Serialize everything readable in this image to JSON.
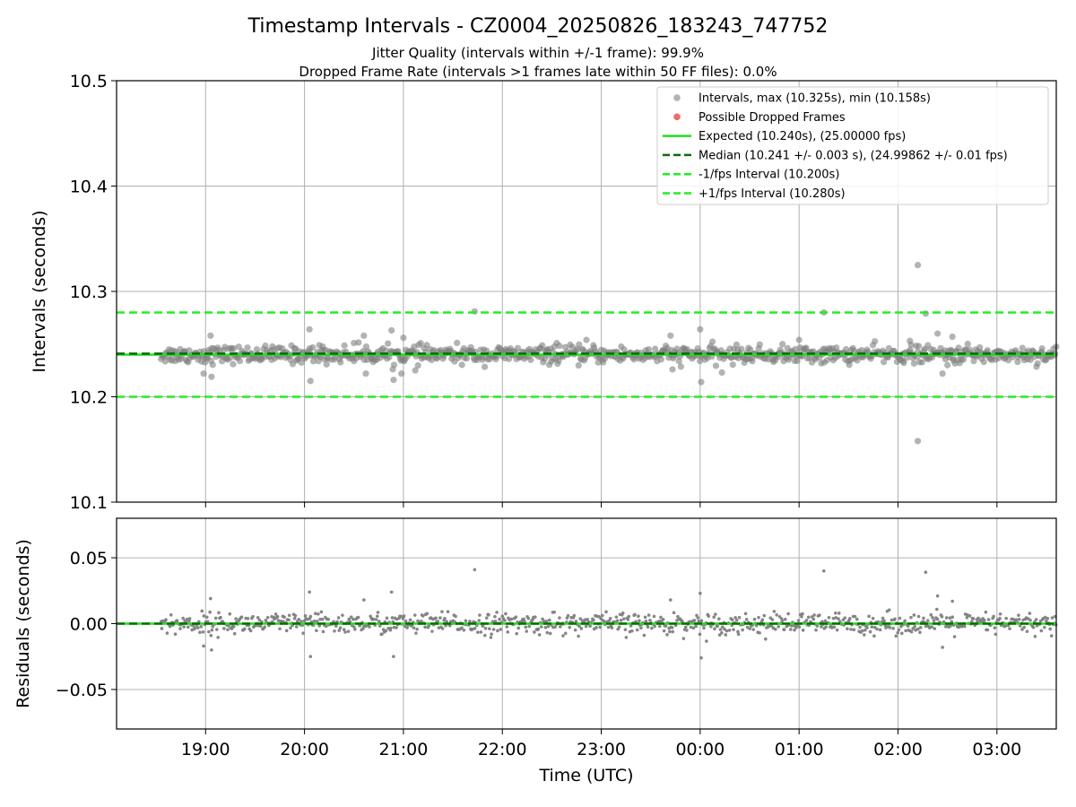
{
  "title": "Timestamp Intervals - CZ0004_20250826_183243_747752",
  "subtitle_lines": [
    "Jitter Quality (intervals within +/-1 frame): 99.9%",
    "Dropped Frame Rate (intervals >1 frames late within 50 FF files): 0.0%"
  ],
  "colors": {
    "points": "#808080",
    "dropped": "#f46a6a",
    "expected": "#22dd22",
    "median": "#0a6b0a",
    "fps_interval": "#22ee22",
    "grid": "#b0b0b0"
  },
  "chart_data": [
    {
      "type": "scatter",
      "panel": "intervals",
      "ylabel": "Intervals (seconds)",
      "ylim": [
        10.1,
        10.5
      ],
      "yticks": [
        "10.1",
        "10.2",
        "10.3",
        "10.4",
        "10.5"
      ],
      "ytick_values": [
        10.1,
        10.2,
        10.3,
        10.4,
        10.5
      ],
      "xlim": [
        -0.9,
        8.6
      ],
      "grid": true,
      "legend_position": "top-right",
      "legend": [
        {
          "label": "Intervals, max (10.325s), min (10.158s)",
          "style": "point"
        },
        {
          "label": "Possible Dropped Frames",
          "style": "point-red"
        },
        {
          "label": "Expected (10.240s), (25.00000 fps)",
          "style": "line-solid"
        },
        {
          "label": "Median (10.241 +/- 0.003 s), (24.99862 +/- 0.01 fps)",
          "style": "line-dashed-dark"
        },
        {
          "label": "-1/fps Interval (10.200s)",
          "style": "line-dashed"
        },
        {
          "label": "+1/fps Interval (10.280s)",
          "style": "line-dashed"
        }
      ],
      "reference_lines": {
        "expected": 10.24,
        "median": 10.241,
        "minus_fps": 10.2,
        "plus_fps": 10.28
      },
      "series_range": {
        "x_start": -0.45,
        "x_end": 8.6,
        "center": 10.24,
        "spread": 0.004
      },
      "outliers": [
        {
          "x": -0.02,
          "y": 10.222
        },
        {
          "x": 0.05,
          "y": 10.258
        },
        {
          "x": 0.06,
          "y": 10.219
        },
        {
          "x": 1.05,
          "y": 10.264
        },
        {
          "x": 1.06,
          "y": 10.215
        },
        {
          "x": 1.15,
          "y": 10.249
        },
        {
          "x": 1.5,
          "y": 10.251
        },
        {
          "x": 1.6,
          "y": 10.258
        },
        {
          "x": 1.62,
          "y": 10.222
        },
        {
          "x": 1.88,
          "y": 10.263
        },
        {
          "x": 1.9,
          "y": 10.216
        },
        {
          "x": 1.98,
          "y": 10.222
        },
        {
          "x": 2.0,
          "y": 10.256
        },
        {
          "x": 2.12,
          "y": 10.225
        },
        {
          "x": 2.72,
          "y": 10.281
        },
        {
          "x": 3.55,
          "y": 10.251
        },
        {
          "x": 3.85,
          "y": 10.254
        },
        {
          "x": 4.7,
          "y": 10.258
        },
        {
          "x": 4.72,
          "y": 10.226
        },
        {
          "x": 5.0,
          "y": 10.264
        },
        {
          "x": 5.01,
          "y": 10.214
        },
        {
          "x": 5.22,
          "y": 10.223
        },
        {
          "x": 6.0,
          "y": 10.254
        },
        {
          "x": 6.25,
          "y": 10.28
        },
        {
          "x": 7.2,
          "y": 10.325
        },
        {
          "x": 7.2,
          "y": 10.158
        },
        {
          "x": 7.28,
          "y": 10.279
        },
        {
          "x": 7.12,
          "y": 10.253
        },
        {
          "x": 7.4,
          "y": 10.26
        },
        {
          "x": 7.45,
          "y": 10.222
        },
        {
          "x": 7.55,
          "y": 10.257
        },
        {
          "x": 7.5,
          "y": 10.23
        }
      ]
    },
    {
      "type": "scatter",
      "panel": "residuals",
      "ylabel": "Residuals (seconds)",
      "xlabel": "Time (UTC)",
      "ylim": [
        -0.08,
        0.08
      ],
      "yticks": [
        "−0.05",
        "0.00",
        "0.05"
      ],
      "ytick_values": [
        -0.05,
        0.0,
        0.05
      ],
      "xlim": [
        -0.9,
        8.6
      ],
      "xticks": [
        "19:00",
        "20:00",
        "21:00",
        "22:00",
        "23:00",
        "00:00",
        "01:00",
        "02:00",
        "03:00"
      ],
      "xtick_values": [
        0,
        1,
        2,
        3,
        4,
        5,
        6,
        7,
        8
      ],
      "grid": true,
      "reference_lines": {
        "zero": 0.0
      },
      "series_range": {
        "x_start": -0.45,
        "x_end": 8.6,
        "center": 0.0,
        "spread": 0.004
      },
      "outliers": [
        {
          "x": -0.02,
          "y": -0.017
        },
        {
          "x": 0.05,
          "y": 0.019
        },
        {
          "x": 0.06,
          "y": -0.02
        },
        {
          "x": 1.05,
          "y": 0.024
        },
        {
          "x": 1.06,
          "y": -0.025
        },
        {
          "x": 1.6,
          "y": 0.018
        },
        {
          "x": 1.88,
          "y": 0.024
        },
        {
          "x": 1.9,
          "y": -0.025
        },
        {
          "x": 2.72,
          "y": 0.041
        },
        {
          "x": 4.7,
          "y": 0.018
        },
        {
          "x": 5.0,
          "y": 0.023
        },
        {
          "x": 5.01,
          "y": -0.026
        },
        {
          "x": 6.25,
          "y": 0.04
        },
        {
          "x": 7.28,
          "y": 0.039
        },
        {
          "x": 7.4,
          "y": 0.021
        },
        {
          "x": 7.45,
          "y": -0.018
        },
        {
          "x": 7.55,
          "y": 0.017
        }
      ]
    }
  ]
}
